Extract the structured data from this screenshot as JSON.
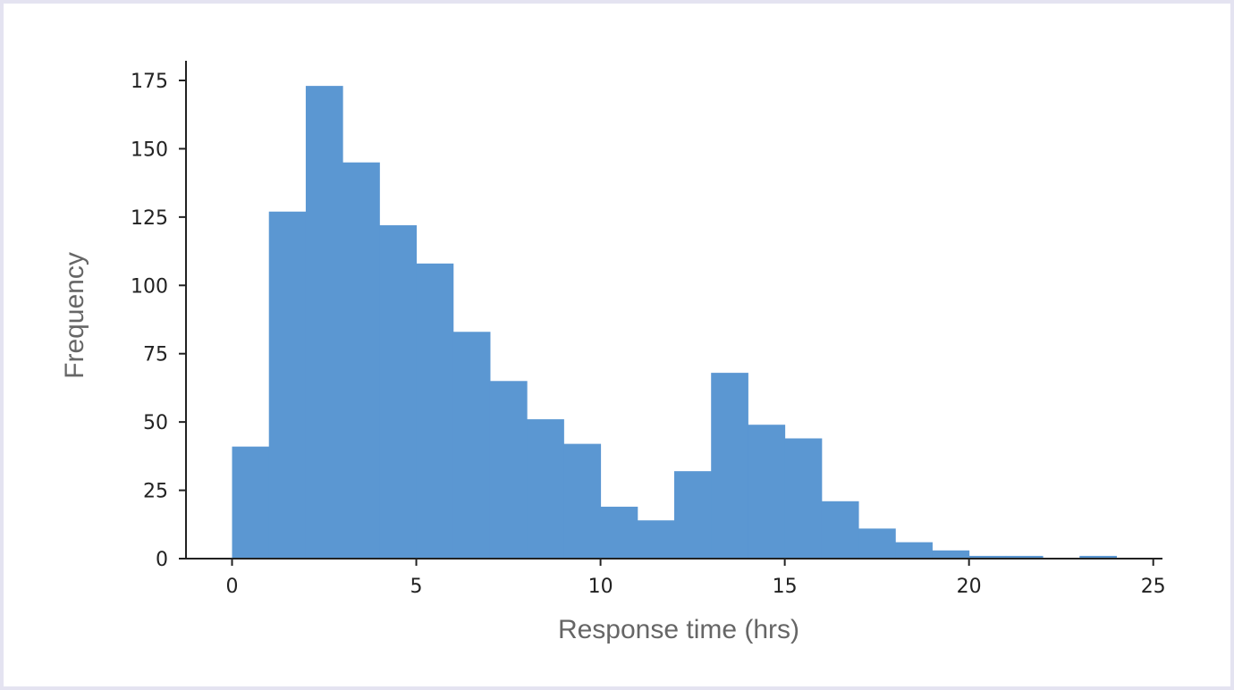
{
  "chart_data": {
    "type": "bar",
    "title": "",
    "xlabel": "Response time (hrs)",
    "ylabel": "Frequency",
    "xlim": [
      -1.25,
      25.25
    ],
    "ylim": [
      0,
      180
    ],
    "x_ticks": [
      0,
      5,
      10,
      15,
      20,
      25
    ],
    "y_ticks": [
      0,
      25,
      50,
      75,
      100,
      125,
      150,
      175
    ],
    "bin_edges": [
      0,
      1,
      2,
      3,
      4,
      5,
      6,
      7,
      8,
      9,
      10,
      11,
      12,
      13,
      14,
      15,
      16,
      17,
      18,
      19,
      20,
      21,
      22,
      23,
      24
    ],
    "values": [
      41,
      127,
      173,
      145,
      122,
      108,
      83,
      65,
      51,
      42,
      19,
      14,
      32,
      68,
      49,
      44,
      21,
      11,
      6,
      3,
      1,
      1,
      0,
      1
    ],
    "bar_color": "#5b97d2",
    "grid": false,
    "legend": "none"
  }
}
